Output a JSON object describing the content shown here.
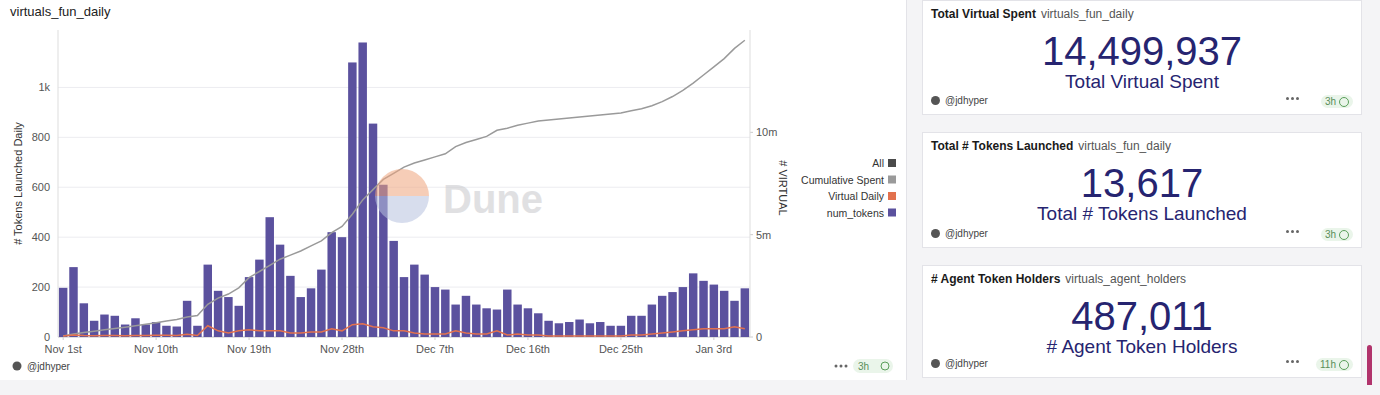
{
  "chart_data": {
    "type": "bar",
    "title": "virtuals_fun_daily",
    "y_label": "# Tokens Launched Daily",
    "y2_label": "# VIRTUAL",
    "legend_label": "All",
    "legend": "right",
    "grid": true,
    "categories": [
      "Nov 1st",
      null,
      null,
      null,
      null,
      null,
      null,
      null,
      null,
      "Nov 10th",
      null,
      null,
      null,
      null,
      null,
      null,
      null,
      null,
      "Nov 19th",
      null,
      null,
      null,
      null,
      null,
      null,
      null,
      null,
      "Nov 28th",
      null,
      null,
      null,
      null,
      null,
      null,
      null,
      null,
      "Dec 7th",
      null,
      null,
      null,
      null,
      null,
      null,
      null,
      null,
      "Dec 16th",
      null,
      null,
      null,
      null,
      null,
      null,
      null,
      null,
      "Dec 25th",
      null,
      null,
      null,
      null,
      null,
      null,
      null,
      null,
      "Jan 3rd",
      null,
      null,
      null
    ],
    "ylim": [
      0,
      1230
    ],
    "yticks": [
      0,
      200,
      400,
      600,
      800,
      {
        "value": 1000,
        "label": "1k"
      }
    ],
    "y2lim": [
      0,
      15000000
    ],
    "y2ticks": [
      0,
      {
        "value": 5000000,
        "label": "5m"
      },
      {
        "value": 10000000,
        "label": "10m"
      }
    ],
    "series": [
      {
        "name": "Cumulative Spent",
        "type": "line",
        "axis": "y2",
        "color": "#9a9a9a",
        "values": [
          50000,
          150000,
          220000,
          280000,
          350000,
          420000,
          480000,
          550000,
          620000,
          700000,
          780000,
          850000,
          980000,
          1050000,
          1600000,
          1900000,
          2100000,
          2400000,
          2900000,
          3200000,
          3500000,
          3800000,
          4000000,
          4200000,
          4450000,
          4700000,
          5100000,
          5400000,
          6000000,
          6700000,
          7200000,
          7700000,
          8000000,
          8300000,
          8500000,
          8650000,
          8800000,
          8950000,
          9300000,
          9500000,
          9650000,
          9800000,
          10100000,
          10200000,
          10350000,
          10450000,
          10550000,
          10600000,
          10650000,
          10700000,
          10750000,
          10800000,
          10850000,
          10900000,
          10950000,
          11050000,
          11150000,
          11300000,
          11500000,
          11750000,
          12050000,
          12400000,
          12800000,
          13200000,
          13600000,
          14100000,
          14500000
        ]
      },
      {
        "name": "Virtual Daily",
        "type": "line",
        "axis": "y2",
        "color": "#e2714e",
        "values": [
          50000,
          100000,
          70000,
          60000,
          70000,
          70000,
          60000,
          70000,
          70000,
          80000,
          80000,
          70000,
          130000,
          70000,
          550000,
          300000,
          200000,
          300000,
          350000,
          300000,
          300000,
          300000,
          200000,
          200000,
          250000,
          250000,
          400000,
          300000,
          600000,
          650000,
          500000,
          450000,
          300000,
          300000,
          200000,
          150000,
          150000,
          150000,
          300000,
          200000,
          150000,
          150000,
          300000,
          100000,
          150000,
          100000,
          100000,
          50000,
          50000,
          50000,
          50000,
          50000,
          50000,
          50000,
          50000,
          100000,
          100000,
          150000,
          200000,
          250000,
          300000,
          350000,
          400000,
          400000,
          400000,
          500000,
          400000
        ]
      },
      {
        "name": "num_tokens",
        "type": "bar",
        "color": "#5b519e",
        "values": [
          197,
          280,
          135,
          65,
          90,
          85,
          50,
          75,
          50,
          60,
          45,
          42,
          145,
          45,
          290,
          185,
          160,
          125,
          240,
          310,
          480,
          370,
          245,
          160,
          195,
          270,
          420,
          400,
          1100,
          1180,
          855,
          610,
          385,
          240,
          290,
          250,
          200,
          190,
          130,
          165,
          130,
          115,
          110,
          190,
          130,
          115,
          95,
          65,
          55,
          60,
          70,
          55,
          60,
          45,
          45,
          85,
          85,
          130,
          165,
          180,
          200,
          255,
          225,
          210,
          185,
          145,
          195
        ]
      }
    ]
  },
  "chart_panel": {
    "watermark": "Dune",
    "author": "@jdhyper",
    "age": "3h"
  },
  "widgets": [
    {
      "title": "Total Virtual Spent",
      "query": "virtuals_fun_daily",
      "value": "14,499,937",
      "label": "Total Virtual Spent",
      "author": "@jdhyper",
      "age": "3h"
    },
    {
      "title": "Total # Tokens Launched",
      "query": "virtuals_fun_daily",
      "value": "13,617",
      "label": "Total # Tokens Launched",
      "author": "@jdhyper",
      "age": "3h"
    },
    {
      "title": "# Agent Token Holders",
      "query": "virtuals_agent_holders",
      "value": "487,011",
      "label": "# Agent Token Holders",
      "author": "@jdhyper",
      "age": "11h"
    }
  ]
}
